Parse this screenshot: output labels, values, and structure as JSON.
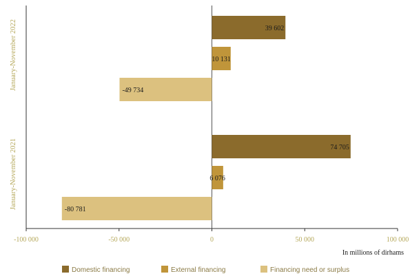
{
  "chart_data": {
    "type": "bar",
    "orientation": "horizontal",
    "categories": [
      "January-November 2022",
      "January-November 2021"
    ],
    "series": [
      {
        "name": "Domestic financing",
        "color": "#8b6b2c",
        "values": [
          39602,
          74705
        ],
        "labels": [
          "39 602",
          "74 705"
        ]
      },
      {
        "name": "External financing",
        "color": "#c0953a",
        "values": [
          10131,
          6076
        ],
        "labels": [
          "10 131",
          "6 076"
        ]
      },
      {
        "name": "Financing need or surplus",
        "color": "#dcc17f",
        "values": [
          -49734,
          -80781
        ],
        "labels": [
          "-49 734",
          "-80 781"
        ]
      }
    ],
    "xlim": [
      -100000,
      100000
    ],
    "xticks": [
      -100000,
      -50000,
      0,
      50000,
      100000
    ],
    "xtick_labels": [
      "-100 000",
      "-50 000",
      "0",
      "50 000",
      "100 000"
    ],
    "xlabel": "In millions of dirhams",
    "legend_position": "bottom",
    "grid": false
  }
}
